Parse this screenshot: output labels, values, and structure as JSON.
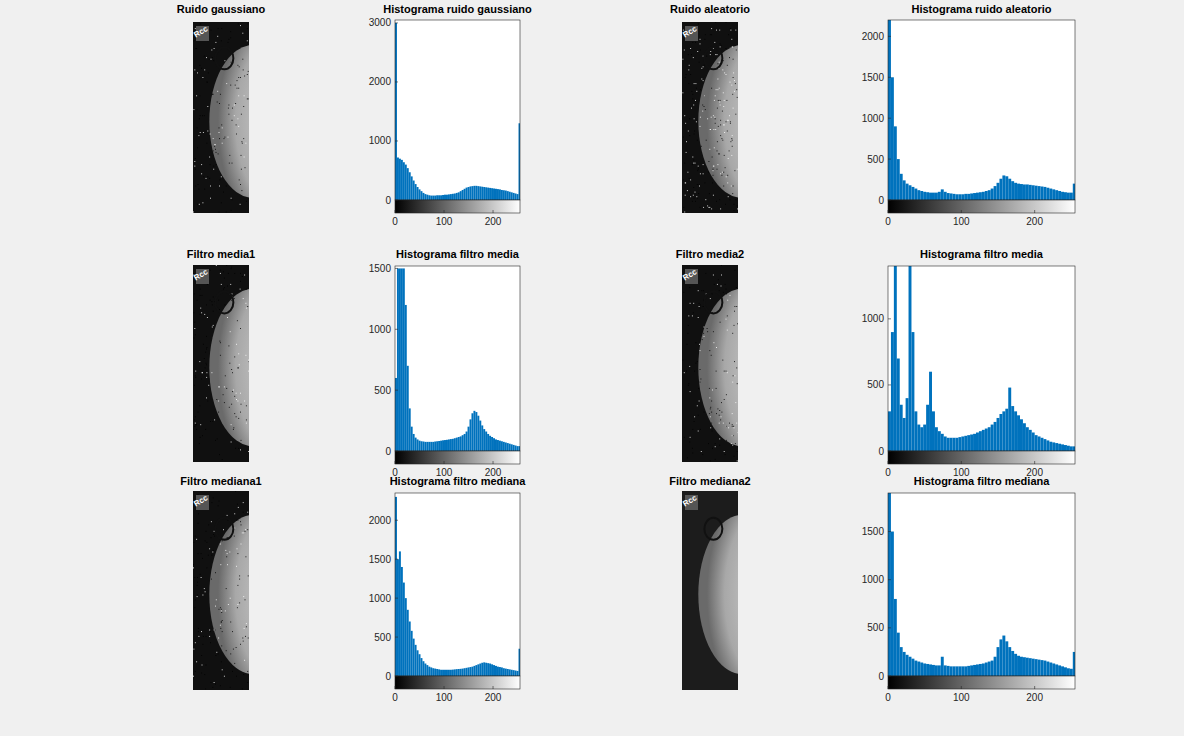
{
  "chart_data": [
    {
      "type": "image",
      "title": "Ruido gaussiano",
      "annotations": [
        "Rcc"
      ]
    },
    {
      "type": "histogram",
      "title": "Histograma ruido gaussiano",
      "color": "#0072bd",
      "grid": false,
      "bins": [
        0,
        4,
        8,
        12,
        16,
        20,
        24,
        28,
        32,
        36,
        40,
        44,
        48,
        52,
        56,
        60,
        64,
        68,
        72,
        76,
        80,
        84,
        88,
        92,
        96,
        100,
        104,
        108,
        112,
        116,
        120,
        124,
        128,
        132,
        136,
        140,
        144,
        148,
        152,
        156,
        160,
        164,
        168,
        172,
        176,
        180,
        184,
        188,
        192,
        196,
        200,
        204,
        208,
        212,
        216,
        220,
        224,
        228,
        232,
        236,
        240,
        244,
        248,
        252,
        256
      ],
      "values": [
        3000,
        720,
        700,
        680,
        640,
        600,
        540,
        470,
        400,
        330,
        270,
        220,
        180,
        150,
        120,
        100,
        90,
        80,
        75,
        75,
        75,
        80,
        80,
        80,
        85,
        90,
        90,
        95,
        100,
        105,
        110,
        120,
        130,
        150,
        170,
        190,
        210,
        220,
        230,
        235,
        240,
        240,
        235,
        230,
        225,
        220,
        215,
        210,
        205,
        200,
        195,
        190,
        185,
        180,
        170,
        165,
        160,
        150,
        140,
        130,
        120,
        110,
        100,
        1300
      ],
      "xlim": [
        0,
        255
      ],
      "xticks": [
        0,
        100,
        200
      ],
      "ylim": [
        0,
        3050
      ],
      "yticks": [
        0,
        1000,
        2000,
        3000
      ]
    },
    {
      "type": "image",
      "title": "Ruido aleatorio",
      "annotations": [
        "Rcc"
      ]
    },
    {
      "type": "histogram",
      "title": "Histograma ruido aleatorio",
      "color": "#0072bd",
      "grid": false,
      "bins": [
        0,
        4,
        8,
        12,
        16,
        20,
        24,
        28,
        32,
        36,
        40,
        44,
        48,
        52,
        56,
        60,
        64,
        68,
        72,
        76,
        80,
        84,
        88,
        92,
        96,
        100,
        104,
        108,
        112,
        116,
        120,
        124,
        128,
        132,
        136,
        140,
        144,
        148,
        152,
        156,
        160,
        164,
        168,
        172,
        176,
        180,
        184,
        188,
        192,
        196,
        200,
        204,
        208,
        212,
        216,
        220,
        224,
        228,
        232,
        236,
        240,
        244,
        248,
        252,
        256
      ],
      "values": [
        2200,
        1500,
        900,
        500,
        320,
        240,
        200,
        180,
        160,
        140,
        120,
        110,
        100,
        95,
        90,
        90,
        90,
        100,
        130,
        100,
        85,
        80,
        75,
        70,
        70,
        70,
        75,
        75,
        80,
        85,
        90,
        95,
        100,
        110,
        120,
        140,
        170,
        210,
        260,
        300,
        290,
        260,
        230,
        210,
        200,
        195,
        190,
        190,
        185,
        180,
        175,
        170,
        165,
        160,
        150,
        140,
        130,
        120,
        110,
        100,
        95,
        90,
        90,
        200
      ],
      "xlim": [
        0,
        255
      ],
      "xticks": [
        0,
        100,
        200
      ],
      "ylim": [
        0,
        2200
      ],
      "yticks": [
        0,
        500,
        1000,
        1500,
        2000
      ]
    },
    {
      "type": "image",
      "title": "Filtro media1",
      "annotations": [
        "Rcc"
      ]
    },
    {
      "type": "histogram",
      "title": "Histograma filtro media",
      "color": "#0072bd",
      "grid": false,
      "bins": [
        0,
        4,
        8,
        12,
        16,
        20,
        24,
        28,
        32,
        36,
        40,
        44,
        48,
        52,
        56,
        60,
        64,
        68,
        72,
        76,
        80,
        84,
        88,
        92,
        96,
        100,
        104,
        108,
        112,
        116,
        120,
        124,
        128,
        132,
        136,
        140,
        144,
        148,
        152,
        156,
        160,
        164,
        168,
        172,
        176,
        180,
        184,
        188,
        192,
        196,
        200,
        204,
        208,
        212,
        216,
        220,
        224,
        228,
        232,
        236,
        240,
        244,
        248,
        252,
        256
      ],
      "values": [
        600,
        1500,
        1500,
        1500,
        1500,
        1200,
        700,
        350,
        200,
        140,
        110,
        95,
        85,
        80,
        78,
        75,
        75,
        75,
        75,
        75,
        78,
        80,
        82,
        85,
        88,
        90,
        92,
        95,
        98,
        100,
        105,
        110,
        115,
        120,
        130,
        140,
        160,
        200,
        260,
        310,
        330,
        320,
        290,
        250,
        210,
        180,
        160,
        140,
        125,
        115,
        105,
        95,
        90,
        85,
        80,
        75,
        70,
        65,
        60,
        55,
        50,
        45,
        40,
        40
      ],
      "xlim": [
        0,
        255
      ],
      "xticks": [
        0,
        100,
        200
      ],
      "ylim": [
        0,
        1520
      ],
      "yticks": [
        0,
        500,
        1000,
        1500
      ]
    },
    {
      "type": "image",
      "title": "Filtro media2",
      "annotations": [
        "Rcc"
      ]
    },
    {
      "type": "histogram",
      "title": "Histograma filtro media",
      "color": "#0072bd",
      "grid": false,
      "bins": [
        0,
        4,
        8,
        12,
        16,
        20,
        24,
        28,
        32,
        36,
        40,
        44,
        48,
        52,
        56,
        60,
        64,
        68,
        72,
        76,
        80,
        84,
        88,
        92,
        96,
        100,
        104,
        108,
        112,
        116,
        120,
        124,
        128,
        132,
        136,
        140,
        144,
        148,
        152,
        156,
        160,
        164,
        168,
        172,
        176,
        180,
        184,
        188,
        192,
        196,
        200,
        204,
        208,
        212,
        216,
        220,
        224,
        228,
        232,
        236,
        240,
        244,
        248,
        252,
        256
      ],
      "values": [
        300,
        900,
        1400,
        700,
        350,
        250,
        400,
        1400,
        900,
        300,
        200,
        180,
        200,
        350,
        600,
        300,
        180,
        150,
        130,
        110,
        100,
        100,
        100,
        100,
        105,
        110,
        115,
        120,
        125,
        130,
        140,
        150,
        160,
        170,
        180,
        200,
        220,
        250,
        280,
        300,
        320,
        480,
        340,
        300,
        270,
        240,
        210,
        180,
        160,
        140,
        120,
        110,
        100,
        90,
        80,
        70,
        65,
        60,
        55,
        50,
        45,
        40,
        35,
        35
      ],
      "xlim": [
        0,
        255
      ],
      "xticks": [
        0,
        100,
        200
      ],
      "ylim": [
        0,
        1400
      ],
      "yticks": [
        0,
        500,
        1000
      ]
    },
    {
      "type": "image",
      "title": "Filtro mediana1",
      "annotations": [
        "Rcc"
      ]
    },
    {
      "type": "histogram",
      "title": "Histograma filtro mediana",
      "color": "#0072bd",
      "grid": false,
      "bins": [
        0,
        4,
        8,
        12,
        16,
        20,
        24,
        28,
        32,
        36,
        40,
        44,
        48,
        52,
        56,
        60,
        64,
        68,
        72,
        76,
        80,
        84,
        88,
        92,
        96,
        100,
        104,
        108,
        112,
        116,
        120,
        124,
        128,
        132,
        136,
        140,
        144,
        148,
        152,
        156,
        160,
        164,
        168,
        172,
        176,
        180,
        184,
        188,
        192,
        196,
        200,
        204,
        208,
        212,
        216,
        220,
        224,
        228,
        232,
        236,
        240,
        244,
        248,
        252,
        256
      ],
      "values": [
        2300,
        1500,
        1600,
        1400,
        1200,
        1000,
        850,
        700,
        580,
        480,
        400,
        330,
        280,
        230,
        190,
        160,
        140,
        120,
        110,
        100,
        95,
        90,
        85,
        80,
        80,
        80,
        80,
        80,
        80,
        82,
        85,
        88,
        90,
        92,
        95,
        100,
        105,
        110,
        115,
        120,
        130,
        140,
        150,
        160,
        170,
        175,
        170,
        165,
        160,
        150,
        140,
        130,
        120,
        115,
        110,
        100,
        95,
        90,
        85,
        80,
        75,
        70,
        65,
        350
      ],
      "xlim": [
        0,
        255
      ],
      "xticks": [
        0,
        100,
        200
      ],
      "ylim": [
        0,
        2350
      ],
      "yticks": [
        0,
        500,
        1000,
        1500,
        2000
      ]
    },
    {
      "type": "image",
      "title": "Filtro mediana2",
      "annotations": [
        "Rcc"
      ]
    },
    {
      "type": "histogram",
      "title": "Histograma filtro mediana",
      "color": "#0072bd",
      "grid": false,
      "bins": [
        0,
        4,
        8,
        12,
        16,
        20,
        24,
        28,
        32,
        36,
        40,
        44,
        48,
        52,
        56,
        60,
        64,
        68,
        72,
        76,
        80,
        84,
        88,
        92,
        96,
        100,
        104,
        108,
        112,
        116,
        120,
        124,
        128,
        132,
        136,
        140,
        144,
        148,
        152,
        156,
        160,
        164,
        168,
        172,
        176,
        180,
        184,
        188,
        192,
        196,
        200,
        204,
        208,
        212,
        216,
        220,
        224,
        228,
        232,
        236,
        240,
        244,
        248,
        252,
        256
      ],
      "values": [
        1900,
        1500,
        800,
        450,
        300,
        250,
        220,
        200,
        180,
        160,
        150,
        140,
        130,
        125,
        120,
        115,
        110,
        110,
        200,
        110,
        105,
        100,
        100,
        100,
        100,
        100,
        100,
        105,
        110,
        115,
        120,
        125,
        130,
        140,
        150,
        160,
        200,
        300,
        380,
        420,
        360,
        300,
        260,
        230,
        210,
        200,
        195,
        190,
        185,
        180,
        175,
        170,
        165,
        160,
        150,
        140,
        130,
        120,
        110,
        100,
        90,
        80,
        75,
        250
      ],
      "xlim": [
        0,
        255
      ],
      "xticks": [
        0,
        100,
        200
      ],
      "ylim": [
        0,
        1900
      ],
      "yticks": [
        0,
        500,
        1000,
        1500
      ]
    }
  ]
}
